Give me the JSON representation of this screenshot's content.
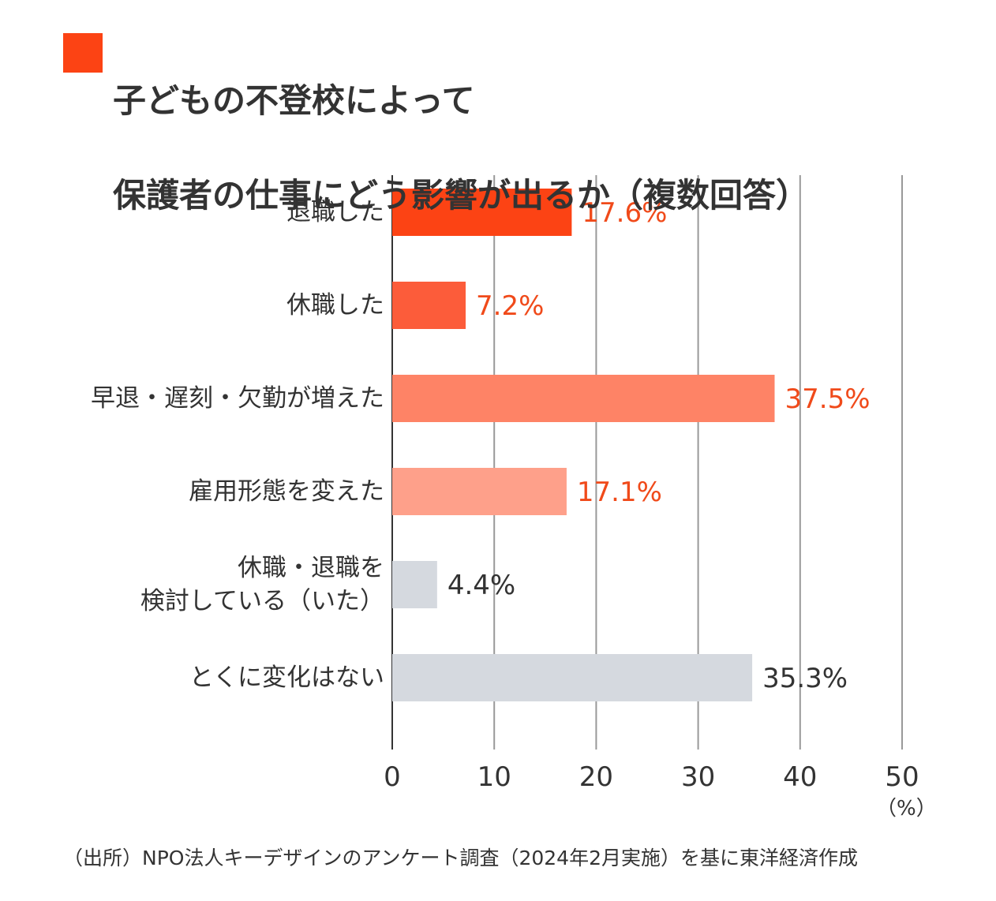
{
  "chart_data": {
    "type": "hbar",
    "title": [
      "子どもの不登校によって",
      "保護者の仕事にどう影響が出るか（複数回答）"
    ],
    "categories": [
      "退職した",
      "休職した",
      "早退・遅刻・欠勤が増えた",
      "雇用形態を変えた",
      "休職・退職を\n検討している（いた）",
      "とくに変化はない"
    ],
    "values": [
      17.6,
      7.2,
      37.5,
      17.1,
      4.4,
      35.3
    ],
    "value_labels": [
      "17.6%",
      "7.2%",
      "37.5%",
      "17.1%",
      "4.4%",
      "35.3%"
    ],
    "colors": [
      "#fc4314",
      "#fc5c3a",
      "#fe8366",
      "#fea08a",
      "#d5d9df",
      "#d5d9df"
    ],
    "label_colors": [
      "#f04a1a",
      "#f04a1a",
      "#f04a1a",
      "#f04a1a",
      "#333333",
      "#333333"
    ],
    "title_color": "#fc4314",
    "xlim": [
      0,
      50
    ],
    "xticks": [
      0,
      10,
      20,
      30,
      40,
      50
    ],
    "x_unit": "（%）",
    "grid": true,
    "source": "（出所）NPO法人キーデザインのアンケート調査（2024年2月実施）を基に東洋経済作成"
  }
}
